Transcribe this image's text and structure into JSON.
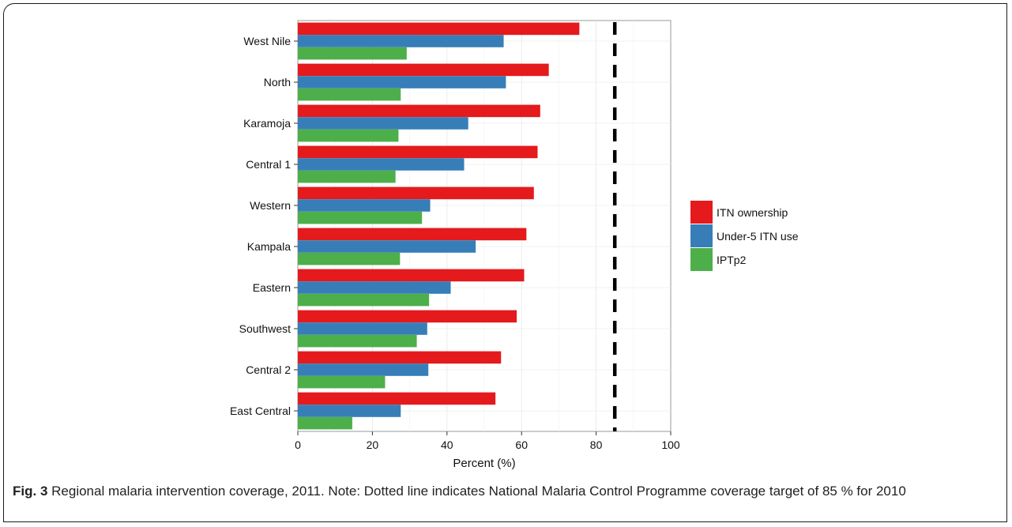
{
  "chart_data": {
    "type": "bar",
    "orientation": "horizontal",
    "categories": [
      "West Nile",
      "North",
      "Karamoja",
      "Central 1",
      "Western",
      "Kampala",
      "Eastern",
      "Southwest",
      "Central 2",
      "East Central"
    ],
    "series": [
      {
        "name": "ITN ownership",
        "color": "#e41a1c",
        "values": [
          75.5,
          67.3,
          65.0,
          64.3,
          63.3,
          61.3,
          60.7,
          58.7,
          54.5,
          53.0
        ]
      },
      {
        "name": "Under-5 ITN use",
        "color": "#377eb8",
        "values": [
          55.2,
          55.8,
          45.7,
          44.6,
          35.5,
          47.7,
          41.0,
          34.7,
          35.0,
          27.6
        ]
      },
      {
        "name": "IPTp2",
        "color": "#4daf4a",
        "values": [
          29.2,
          27.6,
          27.0,
          26.2,
          33.3,
          27.4,
          35.2,
          31.9,
          23.4,
          14.6
        ]
      }
    ],
    "xlabel": "Percent (%)",
    "ylabel": "",
    "xlim": [
      0,
      100
    ],
    "xticks": [
      "0",
      "20",
      "40",
      "60",
      "80",
      "100"
    ],
    "reference_line": {
      "value": 85,
      "style": "dashed",
      "color": "#000000"
    },
    "grid": true,
    "legend_position": "right"
  },
  "caption": {
    "label": "Fig. 3",
    "text": " Regional malaria intervention coverage, 2011. Note: Dotted line indicates National Malaria Control Programme coverage target of 85 % for 2010"
  }
}
